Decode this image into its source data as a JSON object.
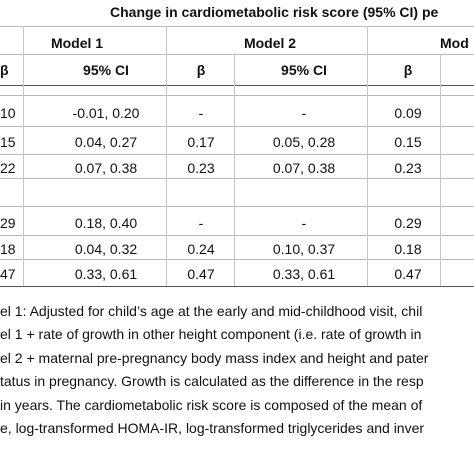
{
  "table": {
    "title": "Change in cardiometabolic risk score (95% CI) pe",
    "model_headers": [
      "Model 1",
      "Model 2",
      "Mod"
    ],
    "col_headers": [
      "β",
      "95% CI",
      "β",
      "95% CI",
      "β"
    ],
    "groups": [
      {
        "rows": [
          [
            "10",
            "-0.01, 0.20",
            "-",
            "-",
            "0.09"
          ],
          [
            "15",
            "0.04, 0.27",
            "0.17",
            "0.05, 0.28",
            "0.15"
          ],
          [
            "22",
            "0.07, 0.38",
            "0.23",
            "0.07, 0.38",
            "0.23"
          ]
        ]
      },
      {
        "rows": [
          [
            "29",
            "0.18, 0.40",
            "-",
            "-",
            "0.29"
          ],
          [
            "18",
            "0.04, 0.32",
            "0.24",
            "0.10, 0.37",
            "0.18"
          ],
          [
            "47",
            "0.33, 0.61",
            "0.47",
            "0.33, 0.61",
            "0.47"
          ]
        ]
      }
    ]
  },
  "footnotes": [
    "el 1: Adjusted for child’s age at the early and mid-childhood visit, chil",
    "el 1 + rate of growth in other height component (i.e. rate of growth in",
    "el 2 + maternal pre-pregnancy body mass index and height and pater",
    "tatus in pregnancy. Growth is calculated as the difference in the resp",
    "in years. The cardiometabolic risk score is composed of the mean of",
    "e, log-transformed HOMA-IR, log-transformed triglycerides and inver"
  ]
}
